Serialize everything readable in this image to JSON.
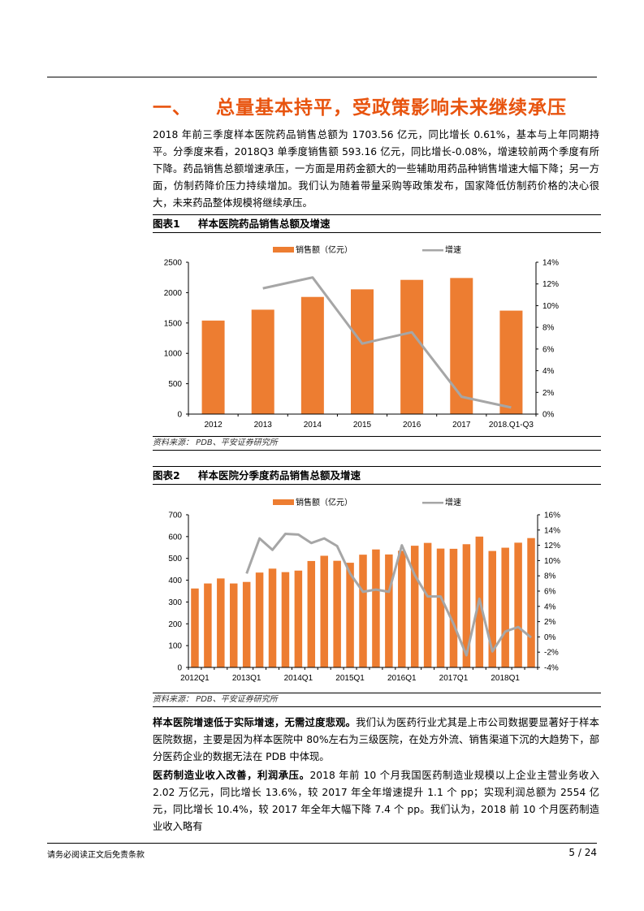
{
  "section": {
    "number": "一、",
    "title": "总量基本持平，受政策影响未来继续承压"
  },
  "paragraphs": {
    "intro": "2018 年前三季度样本医院药品销售总额为 1703.56 亿元，同比增长 0.61%，基本与上年同期持平。分季度来看，2018Q3 单季度销售额 593.16 亿元，同比增长-0.08%，增速较前两个季度有所下降。药品销售总额增速承压，一方面是用药金额大的一些辅助用药品种销售增速大幅下降；另一方面，仿制药降价压力持续增加。我们认为随着带量采购等政策发布，国家降低仿制药价格的决心很大，未来药品整体规模将继续承压。",
    "p2_bold": "样本医院增速低于实际增速，无需过度悲观。",
    "p2_text": "我们认为医药行业尤其是上市公司数据要显著好于样本医院数据，主要是因为样本医院中 80%左右为三级医院，在处方外流、销售渠道下沉的大趋势下，部分医药企业的数据无法在 PDB 中体现。",
    "p3_bold": "医药制造业收入改善，利润承压。",
    "p3_text": "2018 年前 10 个月我国医药制造业规模以上企业主营业务收入 2.02 万亿元，同比增长 13.6%，较 2017 年全年增速提升 1.1 个 pp；实现利润总额为 2554 亿元，同比增长 10.4%，较 2017 年全年大幅下降 7.4 个 pp。我们认为，2018 前 10 个月医药制造业收入略有"
  },
  "figures": [
    {
      "label": "图表1",
      "title": "样本医院药品销售总额及增速",
      "source": "资料来源： PDB、平安证券研究所"
    },
    {
      "label": "图表2",
      "title": "样本医院分季度药品销售总额及增速",
      "source": "资料来源： PDB、平安证券研究所"
    }
  ],
  "colors": {
    "bar": "#ED7D31",
    "line": "#A6A6A6",
    "title": "#E8540F"
  },
  "chart_data": [
    {
      "type": "bar",
      "title": "样本医院药品销售总额及增速",
      "categories": [
        "2012",
        "2013",
        "2014",
        "2015",
        "2016",
        "2017",
        "2018.Q1-Q3"
      ],
      "series": [
        {
          "name": "销售额（亿元）",
          "type": "bar",
          "axis": "left",
          "values": [
            1540,
            1719,
            1929,
            2054,
            2210,
            2241,
            1703.56
          ]
        },
        {
          "name": "增速",
          "type": "line",
          "axis": "right",
          "values": [
            null,
            11.6,
            12.6,
            6.5,
            7.55,
            1.6,
            0.61
          ]
        }
      ],
      "left_axis": {
        "min": 0,
        "max": 2500,
        "step": 500,
        "ticks": [
          "0",
          "500",
          "1000",
          "1500",
          "2000",
          "2500"
        ]
      },
      "right_axis": {
        "min": 0,
        "max": 14,
        "step": 2,
        "ticks": [
          "0%",
          "2%",
          "4%",
          "6%",
          "8%",
          "10%",
          "12%",
          "14%"
        ]
      },
      "legend": [
        "销售额（亿元）",
        "增速"
      ],
      "legend_position": "top",
      "grid": false
    },
    {
      "type": "bar",
      "title": "样本医院分季度药品销售总额及增速",
      "categories": [
        "2012Q1",
        "2012Q2",
        "2012Q3",
        "2012Q4",
        "2013Q1",
        "2013Q2",
        "2013Q3",
        "2013Q4",
        "2014Q1",
        "2014Q2",
        "2014Q3",
        "2014Q4",
        "2015Q1",
        "2015Q2",
        "2015Q3",
        "2015Q4",
        "2016Q1",
        "2016Q2",
        "2016Q3",
        "2016Q4",
        "2017Q1",
        "2017Q2",
        "2017Q3",
        "2017Q4",
        "2018Q1",
        "2018Q2",
        "2018Q3"
      ],
      "tick_labels": [
        "2012Q1",
        "",
        "",
        "",
        "2013Q1",
        "",
        "",
        "",
        "2014Q1",
        "",
        "",
        "",
        "2015Q1",
        "",
        "",
        "",
        "2016Q1",
        "",
        "",
        "",
        "2017Q1",
        "",
        "",
        "",
        "2018Q1",
        "",
        ""
      ],
      "series": [
        {
          "name": "销售额（亿元）",
          "type": "bar",
          "axis": "left",
          "values": [
            362,
            385,
            408,
            385,
            392,
            435,
            453,
            437,
            444,
            488,
            512,
            489,
            480,
            517,
            541,
            518,
            535,
            558,
            571,
            545,
            544,
            565,
            600,
            534,
            549,
            572,
            593.16
          ]
        },
        {
          "name": "增速",
          "type": "line",
          "axis": "right",
          "values": [
            null,
            null,
            null,
            null,
            8.3,
            12.9,
            11.4,
            13.5,
            13.4,
            12.3,
            12.9,
            11.9,
            8.3,
            5.9,
            6.2,
            5.9,
            12.0,
            8.1,
            5.3,
            5.3,
            1.7,
            -2.4,
            5.0,
            -1.9,
            0.7,
            1.3,
            -0.08
          ]
        }
      ],
      "left_axis": {
        "min": 0,
        "max": 700,
        "step": 100,
        "ticks": [
          "0",
          "100",
          "200",
          "300",
          "400",
          "500",
          "600",
          "700"
        ]
      },
      "right_axis": {
        "min": -4,
        "max": 16,
        "step": 2,
        "ticks": [
          "-4%",
          "-2%",
          "0%",
          "2%",
          "4%",
          "6%",
          "8%",
          "10%",
          "12%",
          "14%",
          "16%"
        ]
      },
      "legend": [
        "销售额（亿元）",
        "增速"
      ],
      "legend_position": "top",
      "grid": false
    }
  ],
  "footer": {
    "disclaimer": "请务必阅读正文后免责条款",
    "page": "5 / 24"
  }
}
